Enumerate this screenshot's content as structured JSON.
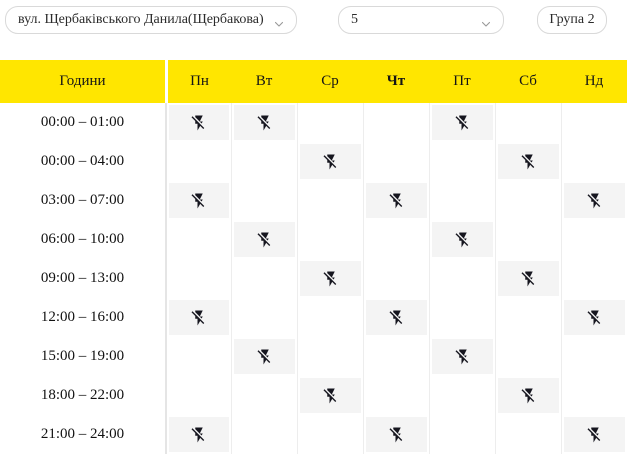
{
  "controls": {
    "street_select": {
      "value": "вул. Щербаківського Данила(Щербакова)"
    },
    "building_select": {
      "value": "5"
    },
    "group_button": {
      "label": "Група 2"
    }
  },
  "table": {
    "hours_header": "Години",
    "days": [
      {
        "label": "Пн",
        "today": false
      },
      {
        "label": "Вт",
        "today": false
      },
      {
        "label": "Ср",
        "today": false
      },
      {
        "label": "Чт",
        "today": true
      },
      {
        "label": "Пт",
        "today": false
      },
      {
        "label": "Сб",
        "today": false
      },
      {
        "label": "Нд",
        "today": false
      }
    ],
    "rows": [
      {
        "time": "00:00 – 01:00",
        "off_days": [
          0,
          1,
          4
        ]
      },
      {
        "time": "00:00 – 04:00",
        "off_days": [
          2,
          5
        ]
      },
      {
        "time": "03:00 – 07:00",
        "off_days": [
          0,
          3,
          6
        ]
      },
      {
        "time": "06:00 – 10:00",
        "off_days": [
          1,
          4
        ]
      },
      {
        "time": "09:00 – 13:00",
        "off_days": [
          2,
          5
        ]
      },
      {
        "time": "12:00 – 16:00",
        "off_days": [
          0,
          3,
          6
        ]
      },
      {
        "time": "15:00 – 19:00",
        "off_days": [
          1,
          4
        ]
      },
      {
        "time": "18:00 – 22:00",
        "off_days": [
          2,
          5
        ]
      },
      {
        "time": "21:00 – 24:00",
        "off_days": [
          0,
          3,
          6
        ]
      }
    ],
    "off_icon": "flash-off-icon"
  },
  "colors": {
    "header_bg": "#FFE600",
    "off_cell_bg": "#F4F4F4",
    "icon_color": "#16161F",
    "control_border": "#D9D9D9",
    "grid_line": "#EDEDED",
    "text": "#1A1A1A"
  }
}
